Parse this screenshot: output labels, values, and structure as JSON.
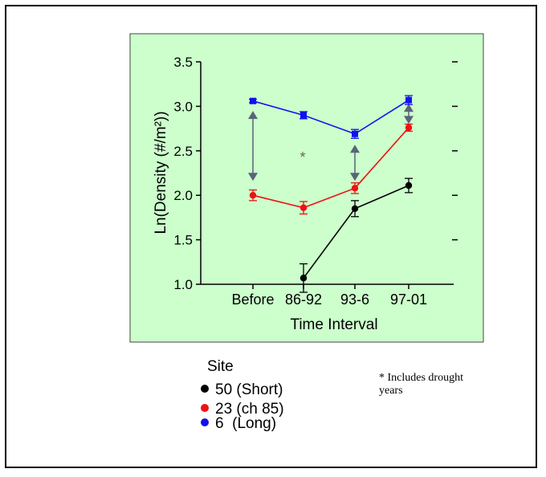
{
  "chart_data": {
    "type": "line",
    "title": "",
    "xlabel": "Time Interval",
    "ylabel": "Ln(Density (#/m²))",
    "categories": [
      "Before",
      "86-92",
      "93-6",
      "97-01"
    ],
    "ylim": [
      1.0,
      3.5
    ],
    "yticks": [
      "1.0",
      "1.5",
      "2.0",
      "2.5",
      "3.0",
      "3.5"
    ],
    "grid": false,
    "background": "#ccffcc",
    "series": [
      {
        "name": "50 (Short)",
        "color": "#000000",
        "values": [
          null,
          1.07,
          1.85,
          2.11
        ],
        "errors": [
          null,
          0.16,
          0.09,
          0.08
        ]
      },
      {
        "name": "23 (ch 85)",
        "color": "#ee1111",
        "values": [
          2.0,
          1.86,
          2.08,
          2.76
        ],
        "errors": [
          0.06,
          0.07,
          0.06,
          0.04
        ]
      },
      {
        "name": "6  (Long)",
        "color": "#1111ee",
        "values": [
          3.06,
          2.9,
          2.69,
          3.07
        ],
        "errors": [
          0.02,
          0.04,
          0.05,
          0.05
        ]
      }
    ],
    "annotations": {
      "asterisk": "*",
      "arrows": [
        {
          "category": "Before",
          "from": 2.93,
          "to": 2.18
        },
        {
          "category": "93-6",
          "from": 2.55,
          "to": 2.18
        },
        {
          "category": "97-01",
          "from": 3.01,
          "to": 2.82
        }
      ]
    },
    "arrow_color": "#5a6478",
    "legend": {
      "title": "Site",
      "placement": "bottom"
    },
    "note": "* Includes drought years"
  }
}
